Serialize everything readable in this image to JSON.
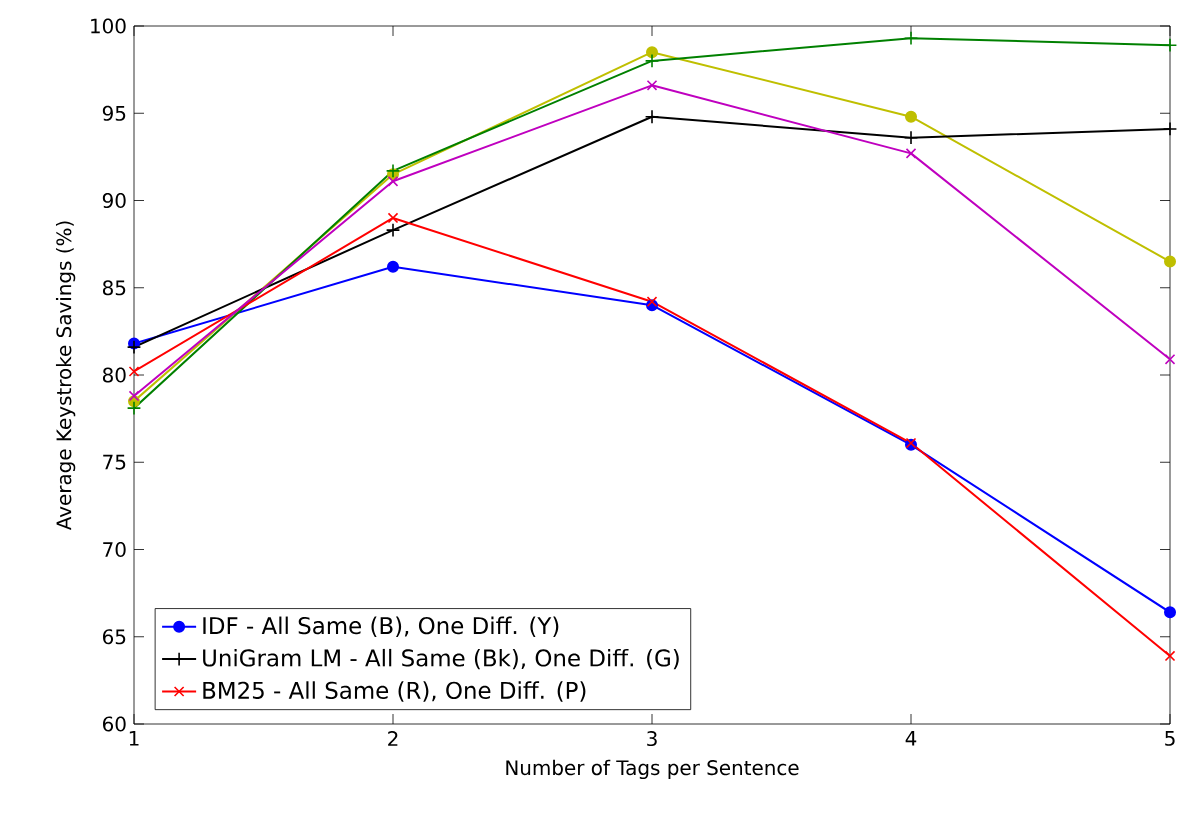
{
  "chart_data": {
    "type": "line",
    "xlabel": "Number of Tags per Sentence",
    "ylabel": "Average Keystroke Savings (%)",
    "x": [
      1,
      2,
      3,
      4,
      5
    ],
    "series": [
      {
        "name": "IDF - All Same (B), One Diff. (Y)",
        "color": "#0000ff",
        "marker": "circle",
        "values": [
          81.8,
          86.2,
          84.0,
          76.0,
          66.4
        ]
      },
      {
        "color": "#bfbf00",
        "marker": "circle",
        "values": [
          78.5,
          91.5,
          98.5,
          94.8,
          86.5
        ]
      },
      {
        "name": "UniGram LM - All Same (Bk), One Diff. (G)",
        "color": "#000000",
        "marker": "plus",
        "values": [
          81.6,
          88.3,
          94.8,
          93.6,
          94.1
        ]
      },
      {
        "color": "#008000",
        "marker": "plus",
        "values": [
          78.1,
          91.7,
          98.0,
          99.3,
          98.9
        ]
      },
      {
        "name": "BM25 - All Same (R), One Diff. (P)",
        "color": "#ff0000",
        "marker": "cross",
        "values": [
          80.2,
          89.0,
          84.2,
          76.1,
          63.9
        ]
      },
      {
        "color": "#bf00bf",
        "marker": "cross",
        "values": [
          78.8,
          91.1,
          96.6,
          92.7,
          80.9
        ]
      }
    ],
    "xlim": [
      1,
      5
    ],
    "ylim": [
      60,
      100
    ],
    "xticks": [
      1,
      2,
      3,
      4,
      5
    ],
    "yticks": [
      60,
      65,
      70,
      75,
      80,
      85,
      90,
      95,
      100
    ],
    "legend": "bottom left",
    "line_style": "solid"
  }
}
